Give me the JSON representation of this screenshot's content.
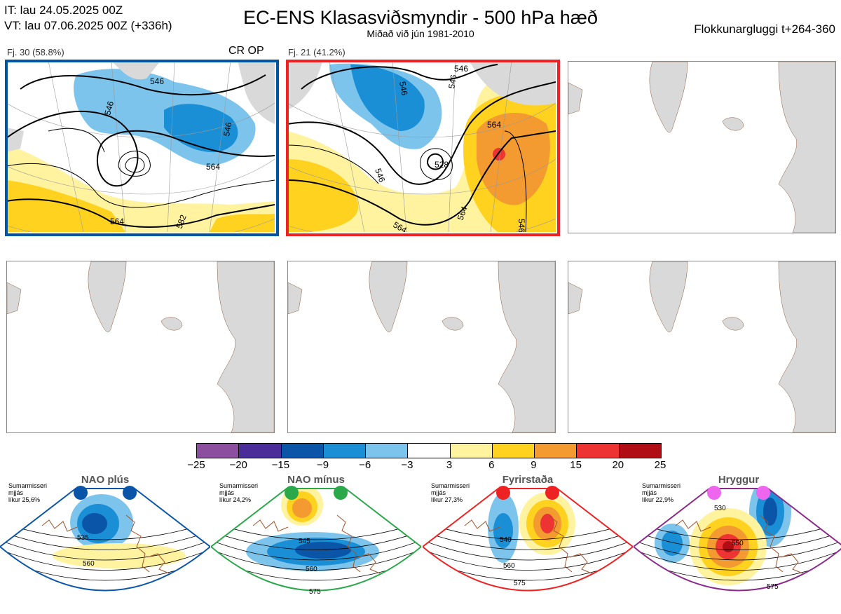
{
  "header": {
    "it_line": "IT: lau 24.05.2025 00Z",
    "vt_line": "VT: lau 07.06.2025 00Z  (+336h)",
    "title": "EC-ENS Klasasviðsmyndir - 500 hPa hæð",
    "subtitle": "Miðað við jún 1981-2010",
    "window": "Flokkunargluggi t+264-360"
  },
  "panels": [
    {
      "label": "Fj. 30 (58.8%)",
      "tag": "CR OP",
      "border": "#0055a0",
      "contours": [
        "546",
        "546",
        "546",
        "564",
        "564",
        "582",
        "564"
      ]
    },
    {
      "label": "Fj. 21 (41.2%)",
      "tag": "",
      "border": "#ee2222",
      "contours": [
        "546",
        "546",
        "564",
        "546",
        "528",
        "564",
        "564",
        "546"
      ]
    },
    {
      "label": "",
      "tag": "",
      "border": "#999999"
    },
    {
      "label": "",
      "tag": "",
      "border": "#999999"
    },
    {
      "label": "",
      "tag": "",
      "border": "#999999"
    },
    {
      "label": "",
      "tag": "",
      "border": "#999999"
    }
  ],
  "colorbar": {
    "colors": [
      "#8c4fa0",
      "#4a2d99",
      "#0a55a8",
      "#1a8fd6",
      "#7cc4ec",
      "#ffffff",
      "#fff3a0",
      "#ffd21f",
      "#f39a30",
      "#ee3333",
      "#b00e14"
    ],
    "labels": [
      "−25",
      "−20",
      "−15",
      "−9",
      "−6",
      "−3",
      "3",
      "6",
      "9",
      "15",
      "20",
      "25"
    ]
  },
  "regimes": [
    {
      "name": "NAO plús",
      "season": "Sumarmisseri",
      "mode": "mjjás",
      "prob": "líkur 25,6%",
      "dot_color": "#0a55a8",
      "border": "#0a55a8",
      "contours": [
        "535",
        "560"
      ]
    },
    {
      "name": "NAO mínus",
      "season": "Sumarmisseri",
      "mode": "mjjás",
      "prob": "líkur 24,2%",
      "dot_color": "#2aa84a",
      "border": "#2aa84a",
      "contours": [
        "545",
        "560",
        "575"
      ]
    },
    {
      "name": "Fyrirstaða",
      "season": "Sumarmisseri",
      "mode": "mjjás",
      "prob": "líkur 27,3%",
      "dot_color": "#ee2222",
      "border": "#ee2222",
      "contours": [
        "540",
        "560",
        "575"
      ]
    },
    {
      "name": "Hryggur",
      "season": "Sumarmisseri",
      "mode": "mjjás",
      "prob": "líkur 22,9%",
      "dot_color": "#ee66ee",
      "border": "#8b2a8b",
      "contours": [
        "530",
        "550",
        "575"
      ]
    }
  ]
}
